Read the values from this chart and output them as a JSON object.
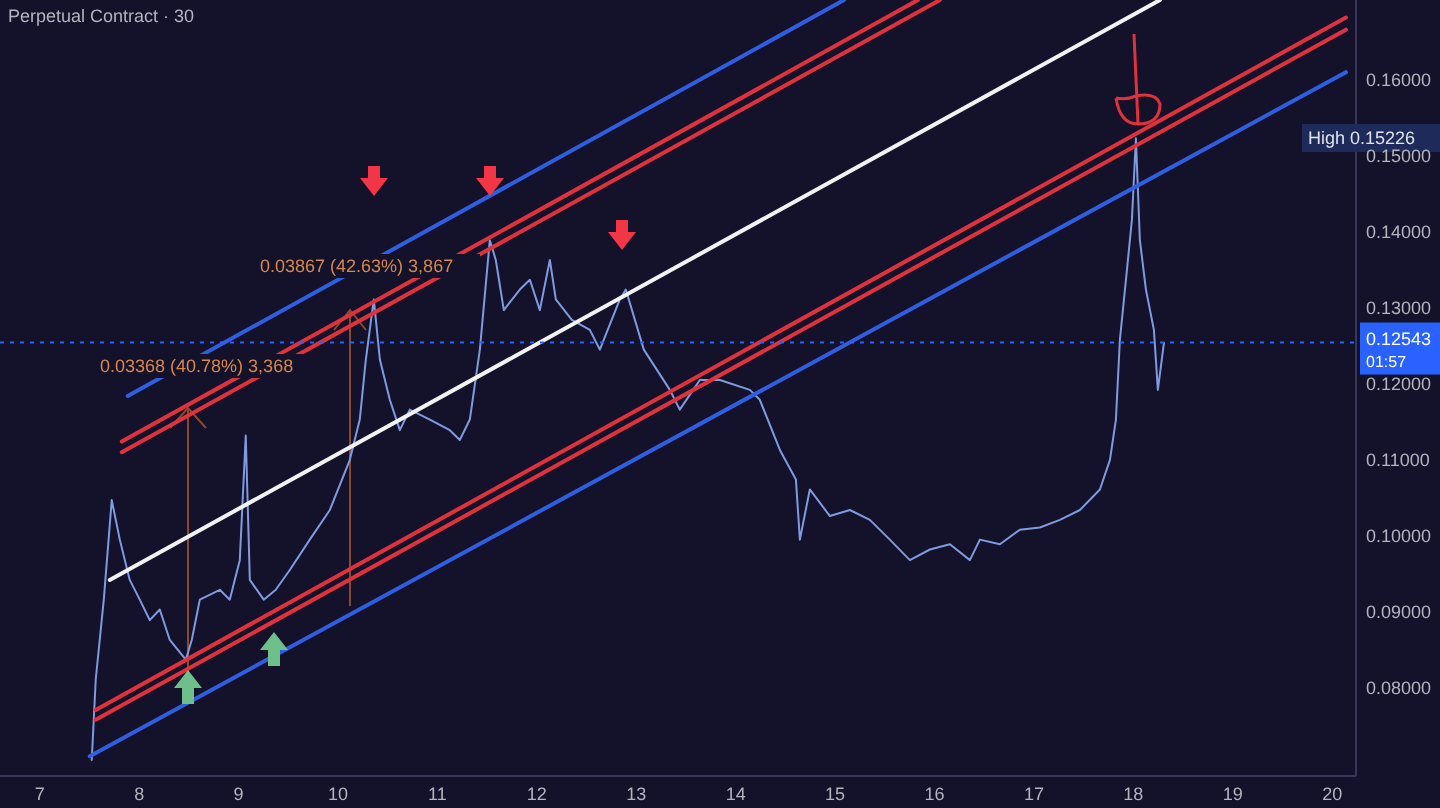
{
  "chart_data": {
    "type": "line",
    "title": "Perpetual Contract · 30",
    "xlim": [
      6.6,
      20.24
    ],
    "ylim": [
      0.0684,
      0.1705
    ],
    "xticks": [
      7,
      8,
      9,
      10,
      11,
      12,
      13,
      14,
      15,
      16,
      17,
      18,
      19,
      20
    ],
    "yticks": [
      {
        "value": 0.08,
        "label": "0.08000"
      },
      {
        "value": 0.09,
        "label": "0.09000"
      },
      {
        "value": 0.1,
        "label": "0.10000"
      },
      {
        "value": 0.11,
        "label": "0.11000"
      },
      {
        "value": 0.12,
        "label": "0.12000"
      },
      {
        "value": 0.13,
        "label": "0.13000"
      },
      {
        "value": 0.14,
        "label": "0.14000"
      },
      {
        "value": 0.15,
        "label": "0.15000"
      },
      {
        "value": 0.16,
        "label": "0.16000"
      }
    ],
    "grid": false,
    "series": [
      {
        "color": "#7f9be0",
        "x": [
          7.523,
          7.563,
          7.644,
          7.724,
          7.805,
          7.905,
          8.006,
          8.107,
          8.207,
          8.308,
          8.469,
          8.529,
          8.61,
          8.811,
          8.911,
          9.012,
          9.072,
          9.113,
          9.253,
          9.374,
          9.515,
          9.716,
          9.918,
          10.119,
          10.219,
          10.28,
          10.36,
          10.421,
          10.521,
          10.622,
          10.722,
          10.924,
          11.125,
          11.225,
          11.326,
          11.427,
          11.527,
          11.587,
          11.668,
          11.829,
          11.93,
          12.03,
          12.131,
          12.191,
          12.352,
          12.533,
          12.634,
          12.835,
          12.895,
          13.076,
          13.338,
          13.438,
          13.64,
          13.841,
          14.143,
          14.243,
          14.445,
          14.606,
          14.646,
          14.746,
          14.948,
          15.149,
          15.35,
          15.551,
          15.752,
          15.954,
          16.155,
          16.356,
          16.457,
          16.658,
          16.859,
          17.06,
          17.262,
          17.463,
          17.664,
          17.765,
          17.825,
          17.865,
          17.926,
          17.986,
          18.026,
          18.066,
          18.127,
          18.207,
          18.247,
          18.308
        ],
        "values": [
          0.0705,
          0.0811,
          0.0916,
          0.1047,
          0.0995,
          0.0942,
          0.0916,
          0.0889,
          0.0903,
          0.0863,
          0.0837,
          0.0863,
          0.0916,
          0.0929,
          0.0916,
          0.0968,
          0.1132,
          0.0942,
          0.0916,
          0.0929,
          0.0955,
          0.0995,
          0.1034,
          0.11,
          0.1153,
          0.1232,
          0.1311,
          0.1232,
          0.1179,
          0.1139,
          0.1166,
          0.1153,
          0.1139,
          0.1126,
          0.1153,
          0.1245,
          0.1389,
          0.1363,
          0.1297,
          0.1324,
          0.1337,
          0.1297,
          0.1363,
          0.1311,
          0.1284,
          0.1271,
          0.1245,
          0.1311,
          0.1324,
          0.1245,
          0.1192,
          0.1166,
          0.1205,
          0.1205,
          0.1192,
          0.1179,
          0.1113,
          0.1074,
          0.0995,
          0.1061,
          0.1026,
          0.1034,
          0.1021,
          0.0995,
          0.0968,
          0.0982,
          0.0989,
          0.0968,
          0.0995,
          0.0989,
          0.1008,
          0.1011,
          0.1021,
          0.1034,
          0.1061,
          0.11,
          0.1153,
          0.1258,
          0.1337,
          0.1416,
          0.1523,
          0.1389,
          0.1324,
          0.1271,
          0.1192,
          0.1254
        ]
      },
      {
        "color": "#2f5fe0",
        "x": [
          7.885,
          15.09
        ],
        "values": [
          0.1184,
          0.1705
        ]
      },
      {
        "color": "#e0323c",
        "x": [
          7.825,
          15.833
        ],
        "values": [
          0.1124,
          0.1705
        ]
      },
      {
        "color": "#e0323c",
        "x": [
          7.825,
          16.054
        ],
        "values": [
          0.111,
          0.1705
        ]
      },
      {
        "color": "#f2f2f2",
        "x": [
          7.704,
          18.268
        ],
        "values": [
          0.0942,
          0.1705
        ]
      },
      {
        "color": "#e0323c",
        "x": [
          7.563,
          20.139
        ],
        "values": [
          0.0771,
          0.1682
        ]
      },
      {
        "color": "#e0323c",
        "x": [
          7.563,
          20.139
        ],
        "values": [
          0.0758,
          0.1666
        ]
      },
      {
        "color": "#2f5fe0",
        "x": [
          7.503,
          20.139
        ],
        "values": [
          0.071,
          0.161
        ]
      }
    ],
    "ref_lines": [
      {
        "axis": "y",
        "value": 0.12543,
        "label": "0.12543",
        "color": "#2962ff",
        "line_style": "dotted"
      }
    ],
    "annotations": [
      "0.03368 (40.78%) 3,368",
      "0.03867 (42.63%) 3,867",
      "High 0.15226",
      "01:57"
    ]
  }
}
